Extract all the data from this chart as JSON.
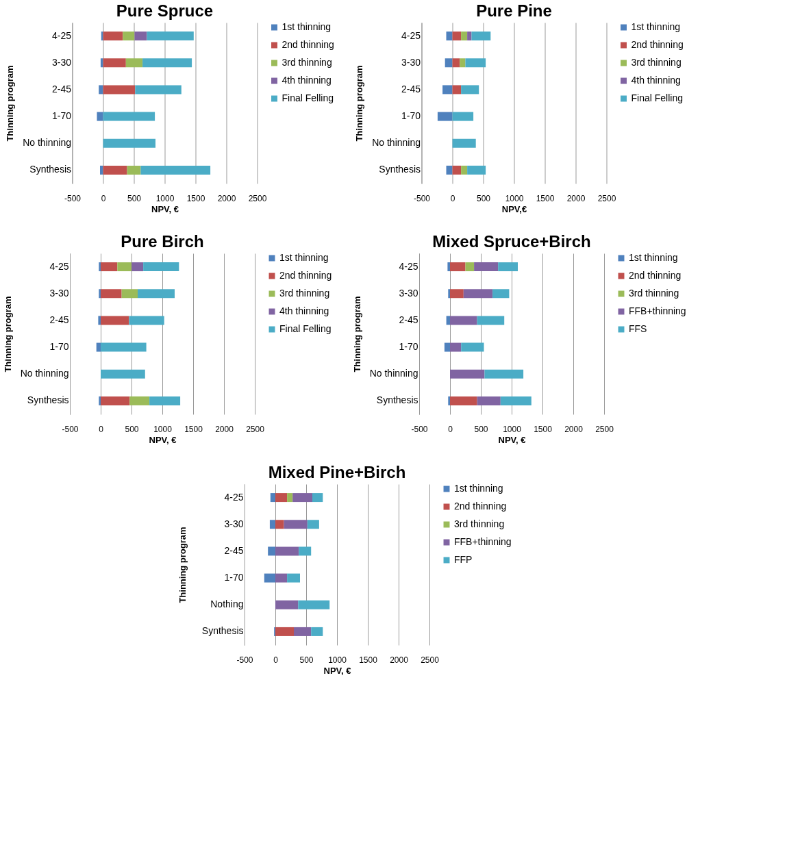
{
  "chart_data": [
    {
      "type": "bar",
      "orientation": "horizontal",
      "stacked": true,
      "title": "Pure Spruce",
      "xlabel": "NPV, €",
      "ylabel": "Thinning program",
      "categories": [
        "4-25",
        "3-30",
        "2-45",
        "1-70",
        "No thinning",
        "Synthesis"
      ],
      "xlim": [
        -500,
        2500
      ],
      "xticks": [
        -500,
        0,
        500,
        1000,
        1500,
        2000,
        2500
      ],
      "grid": "x",
      "legend": "right",
      "series": [
        {
          "name": "1st thinning",
          "color": "#4f81bd",
          "values": [
            -30,
            -40,
            -70,
            -100,
            null,
            -50
          ]
        },
        {
          "name": "2nd thinning",
          "color": "#c0504d",
          "values": [
            320,
            370,
            520,
            null,
            null,
            390
          ]
        },
        {
          "name": "3rd thinning",
          "color": "#9bbb59",
          "values": [
            190,
            270,
            null,
            null,
            null,
            220
          ]
        },
        {
          "name": "4th thinning",
          "color": "#8064a2",
          "values": [
            200,
            null,
            null,
            null,
            null,
            null
          ]
        },
        {
          "name": "Final Felling",
          "color": "#4bacc6",
          "values": [
            760,
            800,
            750,
            840,
            850,
            1130
          ]
        }
      ]
    },
    {
      "type": "bar",
      "orientation": "horizontal",
      "stacked": true,
      "title": "Pure Pine",
      "xlabel": "NPV,€",
      "ylabel": "Thinning program",
      "categories": [
        "4-25",
        "3-30",
        "2-45",
        "1-70",
        "No thinning",
        "Synthesis"
      ],
      "xlim": [
        -500,
        2500
      ],
      "xticks": [
        -500,
        0,
        500,
        1000,
        1500,
        2000,
        2500
      ],
      "grid": "x",
      "legend": "right",
      "series": [
        {
          "name": "1st thinning",
          "color": "#4f81bd",
          "values": [
            -100,
            -120,
            -160,
            -240,
            null,
            -100
          ]
        },
        {
          "name": "2nd thinning",
          "color": "#c0504d",
          "values": [
            140,
            120,
            140,
            null,
            null,
            140
          ]
        },
        {
          "name": "3rd thinning",
          "color": "#9bbb59",
          "values": [
            100,
            90,
            null,
            null,
            null,
            100
          ]
        },
        {
          "name": "4th thinning",
          "color": "#8064a2",
          "values": [
            70,
            null,
            null,
            null,
            null,
            null
          ]
        },
        {
          "name": "Final Felling",
          "color": "#4bacc6",
          "values": [
            310,
            330,
            290,
            340,
            380,
            300
          ]
        }
      ]
    },
    {
      "type": "bar",
      "orientation": "horizontal",
      "stacked": true,
      "title": "Pure Birch",
      "xlabel": "NPV, €",
      "ylabel": "Thinning program",
      "categories": [
        "4-25",
        "3-30",
        "2-45",
        "1-70",
        "No thinning",
        "Synthesis"
      ],
      "xlim": [
        -500,
        2500
      ],
      "xticks": [
        -500,
        0,
        500,
        1000,
        1500,
        2000,
        2500
      ],
      "grid": "x",
      "legend": "right",
      "series": [
        {
          "name": "1st thinning",
          "color": "#4f81bd",
          "values": [
            -30,
            -30,
            -40,
            -70,
            null,
            -30
          ]
        },
        {
          "name": "2nd thinning",
          "color": "#c0504d",
          "values": [
            270,
            340,
            460,
            null,
            null,
            470
          ]
        },
        {
          "name": "3rd thinning",
          "color": "#9bbb59",
          "values": [
            230,
            260,
            null,
            null,
            null,
            320
          ]
        },
        {
          "name": "4th thinning",
          "color": "#8064a2",
          "values": [
            190,
            null,
            null,
            null,
            null,
            null
          ]
        },
        {
          "name": "Final Felling",
          "color": "#4bacc6",
          "values": [
            580,
            600,
            570,
            740,
            720,
            500
          ]
        }
      ]
    },
    {
      "type": "bar",
      "orientation": "horizontal",
      "stacked": true,
      "title": "Mixed Spruce+Birch",
      "xlabel": "NPV, €",
      "ylabel": "Thinning program",
      "categories": [
        "4-25",
        "3-30",
        "2-45",
        "1-70",
        "No thinning",
        "Synthesis"
      ],
      "xlim": [
        -500,
        2500
      ],
      "xticks": [
        -500,
        0,
        500,
        1000,
        1500,
        2000,
        2500
      ],
      "grid": "x",
      "legend": "right",
      "series": [
        {
          "name": "1st thinning",
          "color": "#4f81bd",
          "values": [
            -40,
            -30,
            -60,
            -90,
            null,
            -30
          ]
        },
        {
          "name": "2nd thinning",
          "color": "#c0504d",
          "values": [
            250,
            220,
            null,
            null,
            null,
            440
          ]
        },
        {
          "name": "3rd thinning",
          "color": "#9bbb59",
          "values": [
            140,
            null,
            null,
            null,
            null,
            null
          ]
        },
        {
          "name": "FFB+thinning",
          "color": "#8064a2",
          "values": [
            390,
            470,
            440,
            180,
            560,
            380
          ]
        },
        {
          "name": "FFS",
          "color": "#4bacc6",
          "values": [
            320,
            270,
            440,
            370,
            630,
            500
          ]
        }
      ]
    },
    {
      "type": "bar",
      "orientation": "horizontal",
      "stacked": true,
      "title": "Mixed Pine+Birch",
      "xlabel": "NPV, €",
      "ylabel": "Thinning program",
      "categories": [
        "4-25",
        "3-30",
        "2-45",
        "1-70",
        "Nothing",
        "Synthesis"
      ],
      "xlim": [
        -500,
        2500
      ],
      "xticks": [
        -500,
        0,
        500,
        1000,
        1500,
        2000,
        2500
      ],
      "grid": "x",
      "legend": "right",
      "series": [
        {
          "name": "1st thinning",
          "color": "#4f81bd",
          "values": [
            -80,
            -90,
            -120,
            -180,
            null,
            -20
          ]
        },
        {
          "name": "2nd thinning",
          "color": "#c0504d",
          "values": [
            190,
            140,
            null,
            null,
            null,
            300
          ]
        },
        {
          "name": "3rd thinning",
          "color": "#9bbb59",
          "values": [
            90,
            null,
            null,
            null,
            null,
            null
          ]
        },
        {
          "name": "FFB+thinning",
          "color": "#8064a2",
          "values": [
            320,
            380,
            380,
            190,
            370,
            280
          ]
        },
        {
          "name": "FFP",
          "color": "#4bacc6",
          "values": [
            170,
            190,
            200,
            210,
            510,
            190
          ]
        }
      ]
    }
  ]
}
